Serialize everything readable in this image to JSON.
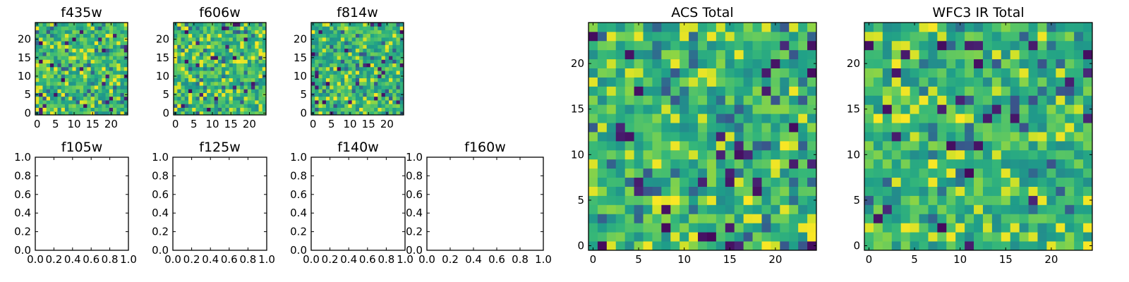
{
  "chart_data": [
    {
      "type": "heatmap",
      "title": "f435w",
      "size": 25,
      "colormap": "viridis",
      "x_ticks": [
        "0",
        "5",
        "10",
        "15",
        "20"
      ],
      "y_ticks": [
        "0",
        "5",
        "10",
        "15",
        "20"
      ],
      "xlim": [
        -0.5,
        24.5
      ],
      "ylim": [
        -0.5,
        24.5
      ],
      "seed": 11
    },
    {
      "type": "heatmap",
      "title": "f606w",
      "size": 25,
      "colormap": "viridis",
      "x_ticks": [
        "0",
        "5",
        "10",
        "15",
        "20"
      ],
      "y_ticks": [
        "0",
        "5",
        "10",
        "15",
        "20"
      ],
      "xlim": [
        -0.5,
        24.5
      ],
      "ylim": [
        -0.5,
        24.5
      ],
      "seed": 23
    },
    {
      "type": "heatmap",
      "title": "f814w",
      "size": 25,
      "colormap": "viridis",
      "x_ticks": [
        "0",
        "5",
        "10",
        "15",
        "20"
      ],
      "y_ticks": [
        "0",
        "5",
        "10",
        "15",
        "20"
      ],
      "xlim": [
        -0.5,
        24.5
      ],
      "ylim": [
        -0.5,
        24.5
      ],
      "seed": 37
    },
    {
      "type": "empty",
      "title": "f105w",
      "x_ticks": [
        "0.0",
        "0.2",
        "0.4",
        "0.6",
        "0.8",
        "1.0"
      ],
      "y_ticks": [
        "0.0",
        "0.2",
        "0.4",
        "0.6",
        "0.8",
        "1.0"
      ],
      "xlim": [
        0,
        1
      ],
      "ylim": [
        0,
        1
      ]
    },
    {
      "type": "empty",
      "title": "f125w",
      "x_ticks": [
        "0.0",
        "0.2",
        "0.4",
        "0.6",
        "0.8",
        "1.0"
      ],
      "y_ticks": [
        "0.0",
        "0.2",
        "0.4",
        "0.6",
        "0.8",
        "1.0"
      ],
      "xlim": [
        0,
        1
      ],
      "ylim": [
        0,
        1
      ]
    },
    {
      "type": "empty",
      "title": "f140w",
      "x_ticks": [
        "0.0",
        "0.2",
        "0.4",
        "0.6",
        "0.8",
        "1.0"
      ],
      "y_ticks": [
        "0.0",
        "0.2",
        "0.4",
        "0.6",
        "0.8",
        "1.0"
      ],
      "xlim": [
        0,
        1
      ],
      "ylim": [
        0,
        1
      ]
    },
    {
      "type": "empty",
      "title": "f160w",
      "x_ticks": [
        "0.0",
        "0.2",
        "0.4",
        "0.6",
        "0.8",
        "1.0"
      ],
      "y_ticks": [
        "0.0",
        "0.2",
        "0.4",
        "0.6",
        "0.8",
        "1.0"
      ],
      "xlim": [
        0,
        1
      ],
      "ylim": [
        0,
        1
      ]
    },
    {
      "type": "heatmap",
      "title": "ACS Total",
      "size": 25,
      "colormap": "viridis",
      "x_ticks": [
        "0",
        "5",
        "10",
        "15",
        "20"
      ],
      "y_ticks": [
        "0",
        "5",
        "10",
        "15",
        "20"
      ],
      "xlim": [
        -0.5,
        24.5
      ],
      "ylim": [
        -0.5,
        24.5
      ],
      "seed": 53
    },
    {
      "type": "heatmap",
      "title": "WFC3 IR Total",
      "size": 25,
      "colormap": "viridis",
      "x_ticks": [
        "0",
        "5",
        "10",
        "15",
        "20"
      ],
      "y_ticks": [
        "0",
        "5",
        "10",
        "15",
        "20"
      ],
      "xlim": [
        -0.5,
        24.5
      ],
      "ylim": [
        -0.5,
        24.5
      ],
      "seed": 71
    }
  ]
}
